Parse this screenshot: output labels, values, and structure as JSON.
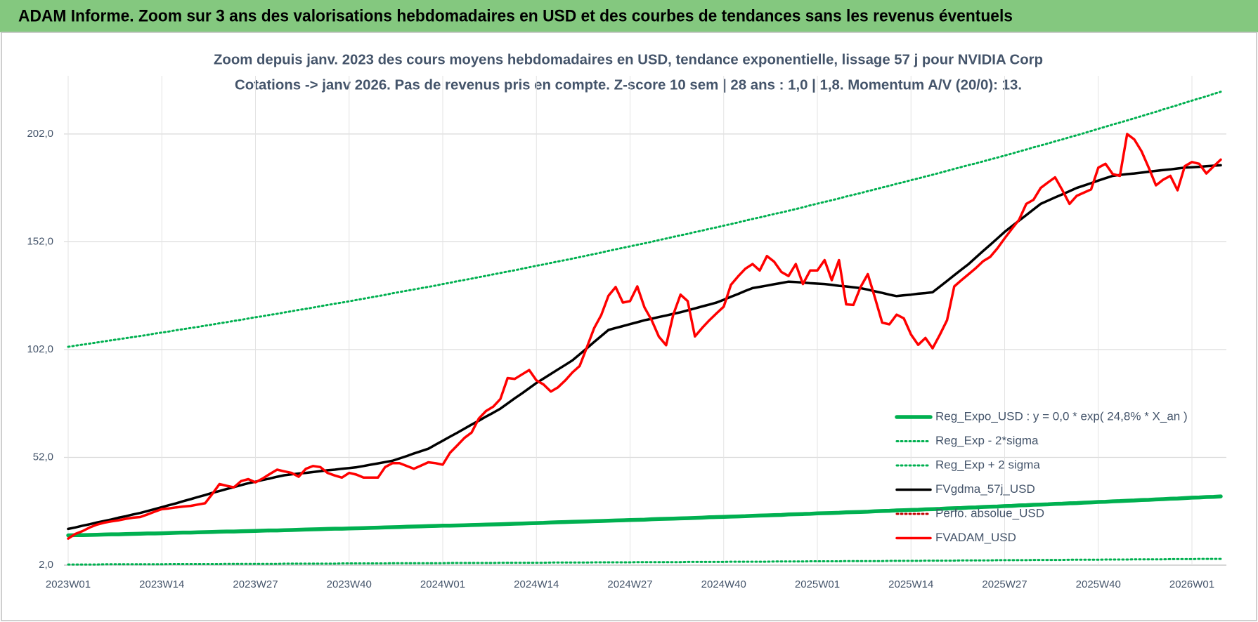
{
  "header": {
    "title": "ADAM Informe. Zoom sur 3 ans des valorisations hebdomadaires en USD et des courbes de tendances sans les revenus éventuels"
  },
  "chart_data": {
    "type": "line",
    "title": "Zoom depuis janv. 2023 des cours moyens hebdomadaires en USD, tendance exponentielle, lissage 57 j pour NVIDIA Corp",
    "subtitle": "Cotations -> janv 2026. Pas de revenus pris en compte. Z-score 10 sem | 28 ans : 1,0 | 1,8. Momentum A/V (20/0): 13.",
    "categories": [
      "2023W01",
      null,
      null,
      null,
      null,
      null,
      null,
      null,
      null,
      null,
      null,
      null,
      null,
      "2023W14",
      null,
      null,
      null,
      null,
      null,
      null,
      null,
      null,
      null,
      null,
      null,
      null,
      "2023W27",
      null,
      null,
      null,
      null,
      null,
      null,
      null,
      null,
      null,
      null,
      null,
      null,
      "2023W40",
      null,
      null,
      null,
      null,
      null,
      null,
      null,
      null,
      null,
      null,
      null,
      null,
      "2024W01",
      null,
      null,
      null,
      null,
      null,
      null,
      null,
      null,
      null,
      null,
      null,
      null,
      "2024W14",
      null,
      null,
      null,
      null,
      null,
      null,
      null,
      null,
      null,
      null,
      null,
      null,
      "2024W27",
      null,
      null,
      null,
      null,
      null,
      null,
      null,
      null,
      null,
      null,
      null,
      null,
      "2024W40",
      null,
      null,
      null,
      null,
      null,
      null,
      null,
      null,
      null,
      null,
      null,
      null,
      "2025W01",
      null,
      null,
      null,
      null,
      null,
      null,
      null,
      null,
      null,
      null,
      null,
      null,
      "2025W14",
      null,
      null,
      null,
      null,
      null,
      null,
      null,
      null,
      null,
      null,
      null,
      null,
      "2025W27",
      null,
      null,
      null,
      null,
      null,
      null,
      null,
      null,
      null,
      null,
      null,
      null,
      "2025W40",
      null,
      null,
      null,
      null,
      null,
      null,
      null,
      null,
      null,
      null,
      null,
      null,
      "2026W01",
      null,
      null,
      null,
      null
    ],
    "ylim": [
      2,
      229
    ],
    "yticks": [
      {
        "value": 2,
        "label": "2,0"
      },
      {
        "value": 52,
        "label": "52,0"
      },
      {
        "value": 102,
        "label": "102,0"
      },
      {
        "value": 152,
        "label": "152,0"
      },
      {
        "value": 202,
        "label": "202,0"
      }
    ],
    "grid": true,
    "legend": "lower right",
    "series": [
      {
        "name": "Reg_Expo_USD : y = 0,0 * exp( 24,8% * X_an )",
        "color": "#00b050",
        "line_style": "thick",
        "values": [
          15.8,
          15.9,
          15.9,
          16.0,
          16.1,
          16.2,
          16.3,
          16.3,
          16.4,
          16.5,
          16.6,
          16.7,
          16.7,
          16.8,
          16.9,
          17.0,
          17.1,
          17.1,
          17.2,
          17.3,
          17.4,
          17.5,
          17.6,
          17.6,
          17.7,
          17.8,
          17.9,
          18.0,
          18.1,
          18.1,
          18.2,
          18.3,
          18.4,
          18.5,
          18.6,
          18.7,
          18.8,
          18.9,
          18.9,
          19.0,
          19.1,
          19.2,
          19.3,
          19.4,
          19.5,
          19.6,
          19.7,
          19.8,
          19.9,
          20.0,
          20.1,
          20.2,
          20.3,
          20.3,
          20.4,
          20.5,
          20.6,
          20.7,
          20.8,
          20.9,
          21.0,
          21.1,
          21.2,
          21.3,
          21.4,
          21.5,
          21.6,
          21.8,
          21.9,
          22.0,
          22.1,
          22.2,
          22.3,
          22.4,
          22.5,
          22.6,
          22.7,
          22.8,
          22.9,
          23.0,
          23.1,
          23.3,
          23.4,
          23.5,
          23.6,
          23.7,
          23.8,
          23.9,
          24.0,
          24.2,
          24.3,
          24.4,
          24.5,
          24.6,
          24.7,
          24.9,
          25.0,
          25.1,
          25.2,
          25.3,
          25.5,
          25.6,
          25.7,
          25.8,
          26.0,
          26.1,
          26.2,
          26.3,
          26.5,
          26.6,
          26.7,
          26.8,
          27.0,
          27.1,
          27.2,
          27.4,
          27.5,
          27.6,
          27.7,
          27.9,
          28.0,
          28.1,
          28.3,
          28.4,
          28.5,
          28.7,
          28.8,
          29.0,
          29.1,
          29.2,
          29.4,
          29.5,
          29.7,
          29.8,
          30.0,
          30.1,
          30.2,
          30.4,
          30.5,
          30.7,
          30.8,
          31.0,
          31.1,
          31.3,
          31.4,
          31.6,
          31.7,
          31.9,
          32.0,
          32.2,
          32.3,
          32.5,
          32.6,
          32.8,
          32.9,
          33.1,
          33.3,
          33.4,
          33.6,
          33.7,
          33.9
        ]
      },
      {
        "name": "Reg_Exp - 2*sigma",
        "color": "#00b050",
        "line_style": "dotted",
        "values": [
          2.3,
          2.3,
          2.3,
          2.3,
          2.3,
          2.4,
          2.4,
          2.4,
          2.4,
          2.4,
          2.4,
          2.4,
          2.4,
          2.4,
          2.5,
          2.5,
          2.5,
          2.5,
          2.5,
          2.5,
          2.5,
          2.5,
          2.6,
          2.6,
          2.6,
          2.6,
          2.6,
          2.6,
          2.6,
          2.6,
          2.7,
          2.7,
          2.7,
          2.7,
          2.7,
          2.7,
          2.7,
          2.7,
          2.8,
          2.8,
          2.8,
          2.8,
          2.8,
          2.8,
          2.8,
          2.9,
          2.9,
          2.9,
          2.9,
          2.9,
          2.9,
          2.9,
          2.9,
          3.0,
          3.0,
          3.0,
          3.0,
          3.0,
          3.0,
          3.0,
          3.1,
          3.1,
          3.1,
          3.1,
          3.1,
          3.1,
          3.1,
          3.2,
          3.2,
          3.2,
          3.2,
          3.2,
          3.2,
          3.3,
          3.3,
          3.3,
          3.3,
          3.3,
          3.3,
          3.4,
          3.4,
          3.4,
          3.4,
          3.4,
          3.4,
          3.4,
          3.5,
          3.5,
          3.5,
          3.5,
          3.5,
          3.5,
          3.6,
          3.6,
          3.6,
          3.6,
          3.6,
          3.6,
          3.7,
          3.7,
          3.7,
          3.7,
          3.7,
          3.8,
          3.8,
          3.8,
          3.8,
          3.8,
          3.9,
          3.9,
          3.9,
          3.9,
          3.9,
          3.9,
          4.0,
          4.0,
          4.0,
          4.0,
          4.0,
          4.1,
          4.1,
          4.1,
          4.1,
          4.1,
          4.2,
          4.2,
          4.2,
          4.2,
          4.2,
          4.3,
          4.3,
          4.3,
          4.3,
          4.3,
          4.4,
          4.4,
          4.4,
          4.4,
          4.4,
          4.5,
          4.5,
          4.5,
          4.5,
          4.5,
          4.6,
          4.6,
          4.6,
          4.6,
          4.7,
          4.7,
          4.7,
          4.7,
          4.7,
          4.8,
          4.8,
          4.8,
          4.8,
          4.9,
          4.9,
          4.9,
          4.9
        ]
      },
      {
        "name": "Reg_Exp + 2 sigma",
        "color": "#00b050",
        "line_style": "dotted",
        "values": [
          103.3,
          103.8,
          104.3,
          104.8,
          105.3,
          105.8,
          106.3,
          106.8,
          107.3,
          107.8,
          108.3,
          108.8,
          109.4,
          109.9,
          110.4,
          111.0,
          111.5,
          112.0,
          112.5,
          113.1,
          113.6,
          114.2,
          114.7,
          115.3,
          115.8,
          116.4,
          117.0,
          117.5,
          118.1,
          118.6,
          119.2,
          119.8,
          120.4,
          120.9,
          121.5,
          122.1,
          122.7,
          123.3,
          123.8,
          124.4,
          125.0,
          125.6,
          126.2,
          126.8,
          127.4,
          128.1,
          128.7,
          129.3,
          129.9,
          130.5,
          131.1,
          131.7,
          132.4,
          133.0,
          133.7,
          134.3,
          134.9,
          135.6,
          136.2,
          136.9,
          137.5,
          138.2,
          138.8,
          139.5,
          140.2,
          140.9,
          141.5,
          142.2,
          142.9,
          143.5,
          144.2,
          144.9,
          145.6,
          146.3,
          147.0,
          147.8,
          148.5,
          149.2,
          149.9,
          150.6,
          151.3,
          152.0,
          152.8,
          153.5,
          154.3,
          155.0,
          155.7,
          156.5,
          157.2,
          158.0,
          158.7,
          159.5,
          160.2,
          161.0,
          161.8,
          162.6,
          163.3,
          164.1,
          164.9,
          165.6,
          166.4,
          167.2,
          168.0,
          168.9,
          169.7,
          170.5,
          171.3,
          172.1,
          173.0,
          173.8,
          174.6,
          175.5,
          176.3,
          177.2,
          178.0,
          178.9,
          179.7,
          180.6,
          181.4,
          182.3,
          183.1,
          184.0,
          184.9,
          185.8,
          186.7,
          187.6,
          188.4,
          189.3,
          190.2,
          191.1,
          192.0,
          192.9,
          193.9,
          194.8,
          195.8,
          196.7,
          197.6,
          198.6,
          199.5,
          200.5,
          201.4,
          202.4,
          203.4,
          204.4,
          205.4,
          206.4,
          207.3,
          208.3,
          209.3,
          210.3,
          211.3,
          212.3,
          213.4,
          214.4,
          215.4,
          216.5,
          217.5,
          218.5,
          219.5,
          220.6,
          221.6
        ]
      },
      {
        "name": "FVgdma_57j_USD",
        "color": "#000000",
        "line_style": "solid",
        "values": [
          18.8,
          19.5,
          20.3,
          21.0,
          21.8,
          22.5,
          23.2,
          24.0,
          24.7,
          25.5,
          26.2,
          27.1,
          28.0,
          28.9,
          29.8,
          30.7,
          31.7,
          32.6,
          33.6,
          34.5,
          35.5,
          36.4,
          37.3,
          38.2,
          39.1,
          40.0,
          40.7,
          41.5,
          42.2,
          43.0,
          43.7,
          44.1,
          44.5,
          44.8,
          45.2,
          45.6,
          46.0,
          46.3,
          46.7,
          47.0,
          47.4,
          48.0,
          48.6,
          49.2,
          49.8,
          50.4,
          51.5,
          52.6,
          53.8,
          54.9,
          56.0,
          57.9,
          59.7,
          61.6,
          63.4,
          65.3,
          67.2,
          69.0,
          70.9,
          72.7,
          74.6,
          77.0,
          79.4,
          81.7,
          84.1,
          86.5,
          88.6,
          90.7,
          92.8,
          94.9,
          97.0,
          99.8,
          102.6,
          105.5,
          108.3,
          111.1,
          112.0,
          112.9,
          113.8,
          114.7,
          115.6,
          116.3,
          117.1,
          117.8,
          118.6,
          119.3,
          120.2,
          121.1,
          122.0,
          122.9,
          123.8,
          125.1,
          126.5,
          127.8,
          129.2,
          130.5,
          131.1,
          131.7,
          132.3,
          132.9,
          133.5,
          133.3,
          133.1,
          132.8,
          132.6,
          132.4,
          132.0,
          131.6,
          131.3,
          130.9,
          130.5,
          129.8,
          129.0,
          128.3,
          127.5,
          126.8,
          127.2,
          127.5,
          127.9,
          128.2,
          128.6,
          131.2,
          133.8,
          136.5,
          139.1,
          141.7,
          144.7,
          147.7,
          150.6,
          153.6,
          156.6,
          159.2,
          161.8,
          164.4,
          167.0,
          169.6,
          171.1,
          172.6,
          174.0,
          175.5,
          177.0,
          178.1,
          179.2,
          180.4,
          181.5,
          182.6,
          183.0,
          183.4,
          183.7,
          184.1,
          184.5,
          184.9,
          185.3,
          185.6,
          186.0,
          186.4,
          186.6,
          186.8,
          187.1,
          187.3,
          187.5
        ]
      },
      {
        "name": "Perfo. absolue_USD",
        "color": "#c00000",
        "line_style": "dotted",
        "values": [
          null,
          null,
          null,
          null,
          null,
          null,
          null,
          null,
          null,
          null,
          null,
          null,
          null,
          null,
          null,
          null,
          null,
          null,
          null,
          null,
          null,
          null,
          null,
          null,
          null,
          null,
          null,
          null,
          null,
          null,
          null,
          null,
          null,
          null,
          null,
          null,
          null,
          null,
          null,
          null,
          null,
          null,
          null,
          null,
          null,
          null,
          null,
          null,
          null,
          null,
          null,
          null,
          null,
          null,
          null,
          null,
          null,
          null,
          null,
          null,
          null,
          null,
          null,
          null,
          null,
          null,
          null,
          null,
          null,
          null,
          null,
          null,
          null,
          null,
          null,
          null,
          null,
          null,
          null,
          null,
          null,
          null,
          null,
          null,
          null,
          null,
          null,
          null,
          null,
          null,
          null,
          null,
          null,
          null,
          null,
          null,
          null,
          null,
          null,
          null,
          null,
          null,
          null,
          null,
          null,
          null,
          null,
          null,
          null,
          null,
          null,
          null,
          null,
          null,
          null,
          null,
          null,
          null,
          null,
          null,
          null,
          null,
          null,
          null,
          null,
          null,
          null,
          null,
          null,
          null,
          null,
          null,
          null,
          null,
          null,
          null,
          null,
          null,
          null,
          null,
          null,
          null,
          null,
          null,
          null,
          null,
          null,
          null,
          null,
          null,
          null,
          null,
          null,
          null,
          null,
          null,
          null,
          null,
          null,
          null,
          null
        ]
      },
      {
        "name": "FVADAM_USD",
        "color": "#ff0000",
        "line_style": "solid",
        "values": [
          14.3,
          16.5,
          17.8,
          19.5,
          20.8,
          21.7,
          22.3,
          22.8,
          23.5,
          24.0,
          24.3,
          25.5,
          26.8,
          28.0,
          28.3,
          28.8,
          29.2,
          29.5,
          30.1,
          30.7,
          35.0,
          39.6,
          38.8,
          38.1,
          41.0,
          41.9,
          40.4,
          42.2,
          44.3,
          46.3,
          45.5,
          44.8,
          43.0,
          46.7,
          48.0,
          47.5,
          44.8,
          43.6,
          42.6,
          44.8,
          44.0,
          42.6,
          42.6,
          42.6,
          47.5,
          49.3,
          49.3,
          48.0,
          46.7,
          48.2,
          49.7,
          49.3,
          48.6,
          54.1,
          57.5,
          61.0,
          63.5,
          70.0,
          73.5,
          75.5,
          79.1,
          88.8,
          88.4,
          90.5,
          92.5,
          87.7,
          85.8,
          82.5,
          84.5,
          87.7,
          91.4,
          94.4,
          103.0,
          111.9,
          118.0,
          127.0,
          131.0,
          123.8,
          124.5,
          131.3,
          121.6,
          115.6,
          108.0,
          104.0,
          118.2,
          127.5,
          124.5,
          108.1,
          112.0,
          115.6,
          118.8,
          121.9,
          132.0,
          136.0,
          139.5,
          141.7,
          138.7,
          145.4,
          142.8,
          138.0,
          136.1,
          141.7,
          132.4,
          138.7,
          138.7,
          143.5,
          134.2,
          143.5,
          123.0,
          122.7,
          131.0,
          137.0,
          126.0,
          114.5,
          113.7,
          118.2,
          116.5,
          109.0,
          104.2,
          107.4,
          102.6,
          108.9,
          115.6,
          131.3,
          134.2,
          137.0,
          139.8,
          143.0,
          145.0,
          149.0,
          153.6,
          158.0,
          162.2,
          169.6,
          171.5,
          177.0,
          179.5,
          181.9,
          176.0,
          169.6,
          173.3,
          174.8,
          176.3,
          186.4,
          188.2,
          183.4,
          182.6,
          202.0,
          199.5,
          194.0,
          186.4,
          178.2,
          180.8,
          182.6,
          175.9,
          187.1,
          189.0,
          188.2,
          183.7,
          187.0,
          190.1
        ]
      }
    ]
  }
}
